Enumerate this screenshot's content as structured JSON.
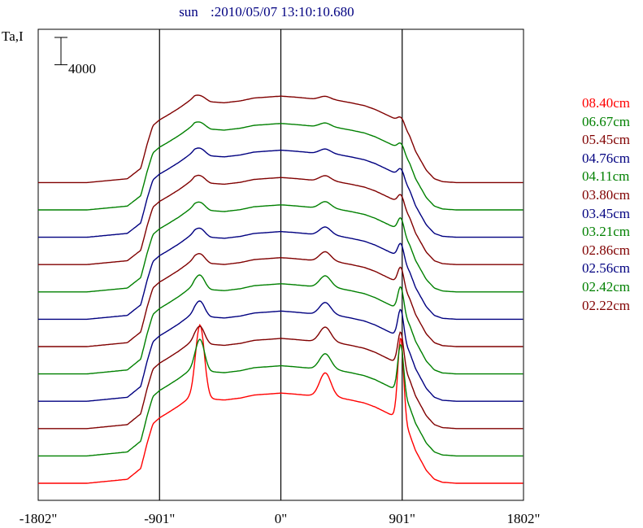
{
  "header": {
    "source": "sun",
    "timestamp": ":2010/05/07 13:10:10.680"
  },
  "chart_data": {
    "type": "line",
    "ylabel": "Ta,I",
    "scale_bar_label": "4000",
    "scale_bar_value": 4000,
    "x_ticks": [
      {
        "value": -1802,
        "label": "-1802\""
      },
      {
        "value": -901,
        "label": "-901\""
      },
      {
        "value": 0,
        "label": "0\""
      },
      {
        "value": 901,
        "label": "901\""
      },
      {
        "value": 1802,
        "label": "1802\""
      }
    ],
    "xlim": [
      -1802,
      1802
    ],
    "vertical_lines": [
      -901,
      0,
      901
    ],
    "series": [
      {
        "name": "08.40cm",
        "color": "#ff0000"
      },
      {
        "name": "06.67cm",
        "color": "#008000"
      },
      {
        "name": "05.45cm",
        "color": "#800000"
      },
      {
        "name": "04.76cm",
        "color": "#000080"
      },
      {
        "name": "04.11cm",
        "color": "#008000"
      },
      {
        "name": "03.80cm",
        "color": "#800000"
      },
      {
        "name": "03.45cm",
        "color": "#000080"
      },
      {
        "name": "03.21cm",
        "color": "#008000"
      },
      {
        "name": "02.86cm",
        "color": "#800000"
      },
      {
        "name": "02.56cm",
        "color": "#000080"
      },
      {
        "name": "02.42cm",
        "color": "#008000"
      },
      {
        "name": "02.22cm",
        "color": "#800000"
      }
    ],
    "profile": {
      "x": [
        -1802,
        -1440,
        -1140,
        -1040,
        -990,
        -950,
        -901,
        -840,
        -760,
        -680,
        -640,
        -600,
        -560,
        -520,
        -420,
        -300,
        -200,
        -100,
        0,
        100,
        180,
        240,
        300,
        330,
        380,
        440,
        520,
        620,
        700,
        760,
        820,
        860,
        890,
        910,
        930,
        960,
        1000,
        1080,
        1140,
        1200,
        1300,
        1802
      ],
      "shape": [
        0,
        0,
        0.04,
        0.15,
        0.42,
        0.6,
        0.66,
        0.71,
        0.78,
        0.86,
        0.9,
        0.88,
        0.87,
        0.85,
        0.84,
        0.86,
        0.89,
        0.9,
        0.91,
        0.9,
        0.89,
        0.88,
        0.88,
        0.88,
        0.87,
        0.86,
        0.84,
        0.81,
        0.77,
        0.73,
        0.69,
        0.66,
        0.63,
        0.61,
        0.56,
        0.48,
        0.33,
        0.13,
        0.04,
        0.01,
        0,
        0
      ]
    },
    "peaks": [
      {
        "x": -600,
        "width": 45
      },
      {
        "x": 330,
        "width": 60
      },
      {
        "x": 890,
        "width": 30
      }
    ],
    "offsets": [
      0,
      4000,
      8000,
      12000,
      16000,
      20000,
      24000,
      28000,
      32000,
      36000,
      40000,
      44000
    ],
    "series_amplitudes": [
      {
        "base": 14500,
        "peaks": [
          10400,
          3400,
          12200
        ]
      },
      {
        "base": 14500,
        "peaks": [
          4300,
          2200,
          7200
        ]
      },
      {
        "base": 14500,
        "peaks": [
          2200,
          2100,
          5000
        ]
      },
      {
        "base": 14500,
        "peaks": [
          1900,
          1700,
          4300
        ]
      },
      {
        "base": 14500,
        "peaks": [
          1700,
          1600,
          3600
        ]
      },
      {
        "base": 14300,
        "peaks": [
          1000,
          1300,
          2600
        ]
      },
      {
        "base": 14100,
        "peaks": [
          900,
          1100,
          2200
        ]
      },
      {
        "base": 14000,
        "peaks": [
          800,
          900,
          2000
        ]
      },
      {
        "base": 14000,
        "peaks": [
          700,
          700,
          1400
        ]
      },
      {
        "base": 14000,
        "peaks": [
          700,
          600,
          1200
        ]
      },
      {
        "base": 13900,
        "peaks": [
          600,
          500,
          1000
        ]
      },
      {
        "base": 13900,
        "peaks": [
          500,
          400,
          800
        ]
      }
    ]
  }
}
